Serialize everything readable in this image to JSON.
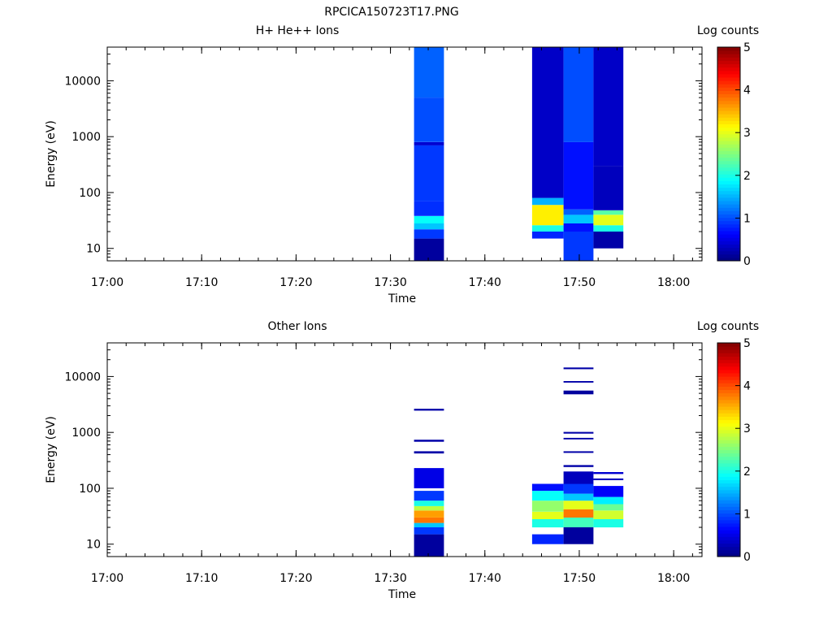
{
  "figure_title": "RPCICA150723T17.PNG",
  "chart_data": [
    {
      "type": "heatmap",
      "title": "H+ He++ Ions",
      "xlabel": "Time",
      "ylabel": "Energy (eV)",
      "x_scale": "time",
      "y_scale": "log",
      "xlim": [
        "17:00",
        "18:03"
      ],
      "ylim": [
        6,
        40000
      ],
      "x_ticks": [
        "17:00",
        "17:10",
        "17:20",
        "17:30",
        "17:40",
        "17:50",
        "18:00"
      ],
      "y_ticks": [
        "10",
        "100",
        "1000",
        "10000"
      ],
      "colorbar": {
        "label": "Log counts",
        "range": [
          0,
          5
        ],
        "ticks": [
          "0",
          "1",
          "2",
          "3",
          "4",
          "5"
        ],
        "colormap": "jet"
      },
      "columns": [
        {
          "t_start": "17:32:30",
          "t_end": "17:35:40",
          "cells": [
            {
              "e_low": 6,
              "e_high": 15,
              "value": 0.15
            },
            {
              "e_low": 15,
              "e_high": 22,
              "value": 0.9
            },
            {
              "e_low": 22,
              "e_high": 28,
              "value": 1.6
            },
            {
              "e_low": 28,
              "e_high": 38,
              "value": 1.9
            },
            {
              "e_low": 38,
              "e_high": 70,
              "value": 0.85
            },
            {
              "e_low": 70,
              "e_high": 700,
              "value": 0.9
            },
            {
              "e_low": 700,
              "e_high": 800,
              "value": 0.4
            },
            {
              "e_low": 800,
              "e_high": 5000,
              "value": 1.0
            },
            {
              "e_low": 5000,
              "e_high": 40000,
              "value": 1.1
            }
          ]
        },
        {
          "t_start": "17:45:00",
          "t_end": "17:48:20",
          "cells": [
            {
              "e_low": 15,
              "e_high": 20,
              "value": 0.8
            },
            {
              "e_low": 20,
              "e_high": 26,
              "value": 2.0
            },
            {
              "e_low": 26,
              "e_high": 60,
              "value": 3.2
            },
            {
              "e_low": 60,
              "e_high": 80,
              "value": 1.5
            },
            {
              "e_low": 80,
              "e_high": 40000,
              "value": 0.35
            }
          ]
        },
        {
          "t_start": "17:48:20",
          "t_end": "17:51:30",
          "cells": [
            {
              "e_low": 6,
              "e_high": 20,
              "value": 0.9
            },
            {
              "e_low": 20,
              "e_high": 28,
              "value": 0.7
            },
            {
              "e_low": 28,
              "e_high": 40,
              "value": 1.6
            },
            {
              "e_low": 40,
              "e_high": 50,
              "value": 1.1
            },
            {
              "e_low": 50,
              "e_high": 800,
              "value": 0.7
            },
            {
              "e_low": 800,
              "e_high": 40000,
              "value": 1.0
            }
          ]
        },
        {
          "t_start": "17:51:30",
          "t_end": "17:54:40",
          "cells": [
            {
              "e_low": 10,
              "e_high": 20,
              "value": 0.2
            },
            {
              "e_low": 20,
              "e_high": 26,
              "value": 2.0
            },
            {
              "e_low": 26,
              "e_high": 40,
              "value": 3.0
            },
            {
              "e_low": 40,
              "e_high": 48,
              "value": 2.3
            },
            {
              "e_low": 48,
              "e_high": 300,
              "value": 0.3
            },
            {
              "e_low": 300,
              "e_high": 40000,
              "value": 0.35
            }
          ]
        }
      ]
    },
    {
      "type": "heatmap",
      "title": "Other Ions",
      "xlabel": "Time",
      "ylabel": "Energy (eV)",
      "x_scale": "time",
      "y_scale": "log",
      "xlim": [
        "17:00",
        "18:03"
      ],
      "ylim": [
        6,
        40000
      ],
      "x_ticks": [
        "17:00",
        "17:10",
        "17:20",
        "17:30",
        "17:40",
        "17:50",
        "18:00"
      ],
      "y_ticks": [
        "10",
        "100",
        "1000",
        "10000"
      ],
      "colorbar": {
        "label": "Log counts",
        "range": [
          0,
          5
        ],
        "ticks": [
          "0",
          "1",
          "2",
          "3",
          "4",
          "5"
        ],
        "colormap": "jet"
      },
      "columns": [
        {
          "t_start": "17:32:30",
          "t_end": "17:35:40",
          "cells": [
            {
              "e_low": 6,
              "e_high": 15,
              "value": 0.15
            },
            {
              "e_low": 15,
              "e_high": 20,
              "value": 0.9
            },
            {
              "e_low": 20,
              "e_high": 24,
              "value": 1.6
            },
            {
              "e_low": 24,
              "e_high": 30,
              "value": 3.8
            },
            {
              "e_low": 30,
              "e_high": 40,
              "value": 3.6
            },
            {
              "e_low": 40,
              "e_high": 48,
              "value": 2.8
            },
            {
              "e_low": 48,
              "e_high": 60,
              "value": 2.0
            },
            {
              "e_low": 60,
              "e_high": 90,
              "value": 0.9
            },
            {
              "e_low": 100,
              "e_high": 230,
              "value": 0.5
            },
            {
              "e_low": 420,
              "e_high": 460,
              "value": 0.2
            },
            {
              "e_low": 680,
              "e_high": 740,
              "value": 0.2
            },
            {
              "e_low": 2450,
              "e_high": 2650,
              "value": 0.2
            }
          ]
        },
        {
          "t_start": "17:45:00",
          "t_end": "17:48:20",
          "cells": [
            {
              "e_low": 10,
              "e_high": 15,
              "value": 0.8
            },
            {
              "e_low": 20,
              "e_high": 28,
              "value": 2.0
            },
            {
              "e_low": 28,
              "e_high": 38,
              "value": 3.0
            },
            {
              "e_low": 38,
              "e_high": 60,
              "value": 2.6
            },
            {
              "e_low": 60,
              "e_high": 90,
              "value": 1.9
            },
            {
              "e_low": 90,
              "e_high": 120,
              "value": 0.7
            }
          ]
        },
        {
          "t_start": "17:48:20",
          "t_end": "17:51:30",
          "cells": [
            {
              "e_low": 10,
              "e_high": 20,
              "value": 0.15
            },
            {
              "e_low": 20,
              "e_high": 30,
              "value": 2.2
            },
            {
              "e_low": 30,
              "e_high": 42,
              "value": 3.8
            },
            {
              "e_low": 42,
              "e_high": 60,
              "value": 3.0
            },
            {
              "e_low": 60,
              "e_high": 80,
              "value": 1.6
            },
            {
              "e_low": 80,
              "e_high": 120,
              "value": 0.9
            },
            {
              "e_low": 120,
              "e_high": 200,
              "value": 0.3
            },
            {
              "e_low": 240,
              "e_high": 260,
              "value": 0.2
            },
            {
              "e_low": 430,
              "e_high": 460,
              "value": 0.2
            },
            {
              "e_low": 750,
              "e_high": 800,
              "value": 0.2
            },
            {
              "e_low": 950,
              "e_high": 1020,
              "value": 0.2
            },
            {
              "e_low": 4800,
              "e_high": 5600,
              "value": 0.15
            },
            {
              "e_low": 7800,
              "e_high": 8300,
              "value": 0.2
            },
            {
              "e_low": 13500,
              "e_high": 14500,
              "value": 0.2
            }
          ]
        },
        {
          "t_start": "17:51:30",
          "t_end": "17:54:40",
          "cells": [
            {
              "e_low": 20,
              "e_high": 28,
              "value": 2.0
            },
            {
              "e_low": 28,
              "e_high": 40,
              "value": 2.9
            },
            {
              "e_low": 40,
              "e_high": 52,
              "value": 2.4
            },
            {
              "e_low": 52,
              "e_high": 70,
              "value": 1.8
            },
            {
              "e_low": 70,
              "e_high": 110,
              "value": 0.6
            },
            {
              "e_low": 140,
              "e_high": 150,
              "value": 0.3
            },
            {
              "e_low": 180,
              "e_high": 195,
              "value": 0.4
            }
          ]
        }
      ]
    }
  ]
}
